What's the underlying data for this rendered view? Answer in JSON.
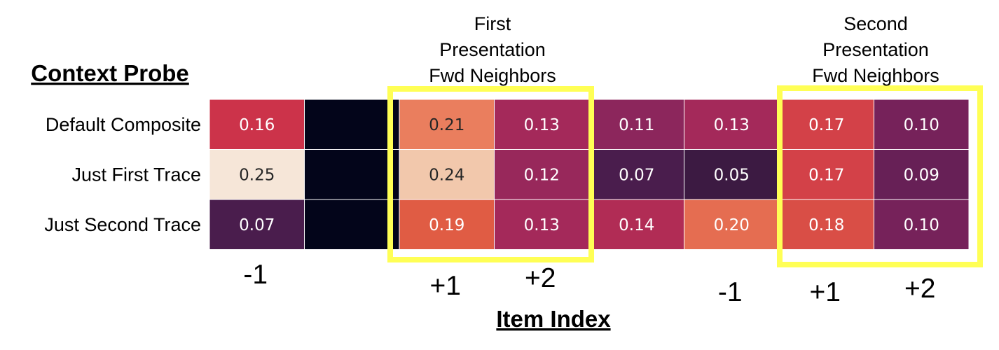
{
  "chart_data": {
    "type": "heatmap",
    "ylabel": "Context Probe",
    "xlabel": "Item Index",
    "rows": [
      "Default Composite",
      "Just First Trace",
      "Just Second Trace"
    ],
    "x_ticks": [
      "-1",
      "",
      "+1",
      "+2",
      "",
      "-1",
      "+1",
      "+2"
    ],
    "values": [
      [
        0.16,
        null,
        0.21,
        0.13,
        0.11,
        0.13,
        0.17,
        0.1
      ],
      [
        0.25,
        null,
        0.24,
        0.12,
        0.07,
        0.05,
        0.17,
        0.09
      ],
      [
        0.07,
        null,
        0.19,
        0.13,
        0.14,
        0.2,
        0.18,
        0.1
      ]
    ],
    "value_labels": [
      [
        "0.16",
        "",
        "0.21",
        "0.13",
        "0.11",
        "0.13",
        "0.17",
        "0.10"
      ],
      [
        "0.25",
        "",
        "0.24",
        "0.12",
        "0.07",
        "0.05",
        "0.17",
        "0.09"
      ],
      [
        "0.07",
        "",
        "0.19",
        "0.13",
        "0.14",
        "0.20",
        "0.18",
        "0.10"
      ]
    ],
    "color_scale": {
      "min": 0.05,
      "max": 0.25,
      "missing_color": "#03051a"
    },
    "highlights": [
      {
        "label": [
          "First",
          "Presentation",
          "Fwd Neighbors"
        ],
        "columns": [
          2,
          3
        ]
      },
      {
        "label": [
          "Second",
          "Presentation",
          "Fwd Neighbors"
        ],
        "columns": [
          6,
          7
        ]
      }
    ],
    "highlight_color": "#ffff55"
  }
}
